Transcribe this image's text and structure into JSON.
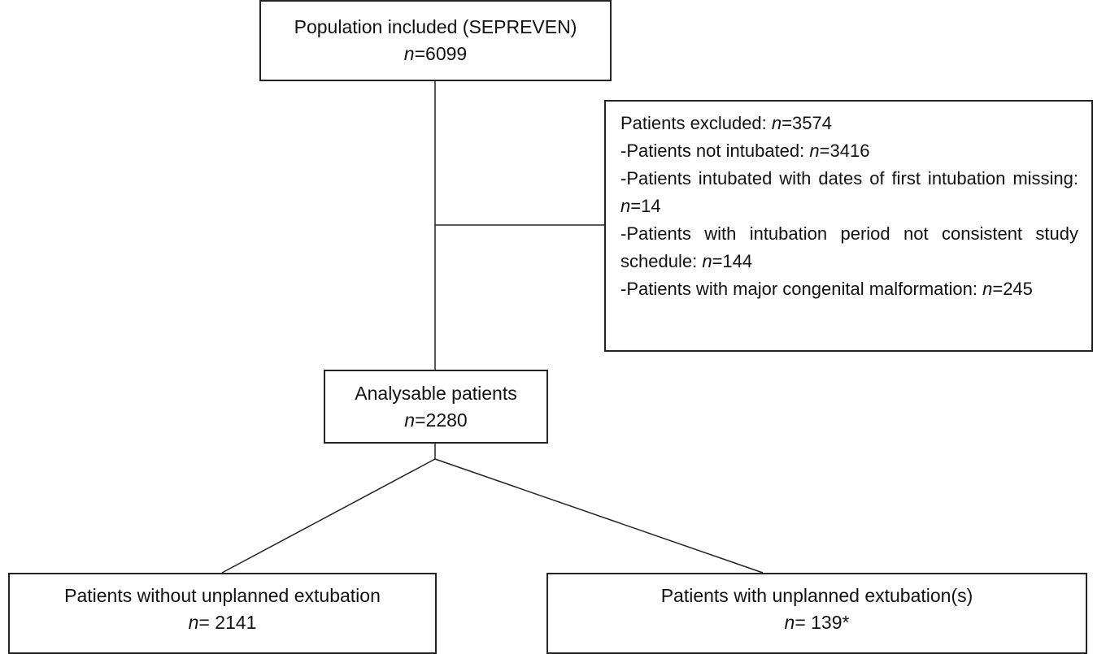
{
  "nodes": [
    {
      "label": "Population included (SEPREVEN)",
      "var": "n",
      "value": "=6099"
    },
    {
      "label": "Analysable patients",
      "var": "n",
      "value": "=2280"
    },
    {
      "label": "Patients without unplanned extubation",
      "var": "n",
      "value": "= 2141"
    },
    {
      "label": "Patients with unplanned extubation(s)",
      "var": "n",
      "value": "= 139*"
    }
  ],
  "excluded": {
    "items": [
      {
        "label": "Patients excluded:",
        "var": "n",
        "value": "=3574"
      },
      {
        "label": "-Patients not intubated:",
        "var": "n",
        "value": "=3416"
      },
      {
        "label": "-Patients intubated with dates of first intubation missing:",
        "var": "n",
        "value": "=14"
      },
      {
        "label": "-Patients with intubation period not consistent study schedule:",
        "var": "n",
        "value": "=144"
      },
      {
        "label": "-Patients with major congenital malformation:",
        "var": "n",
        "value": "=245"
      }
    ]
  }
}
